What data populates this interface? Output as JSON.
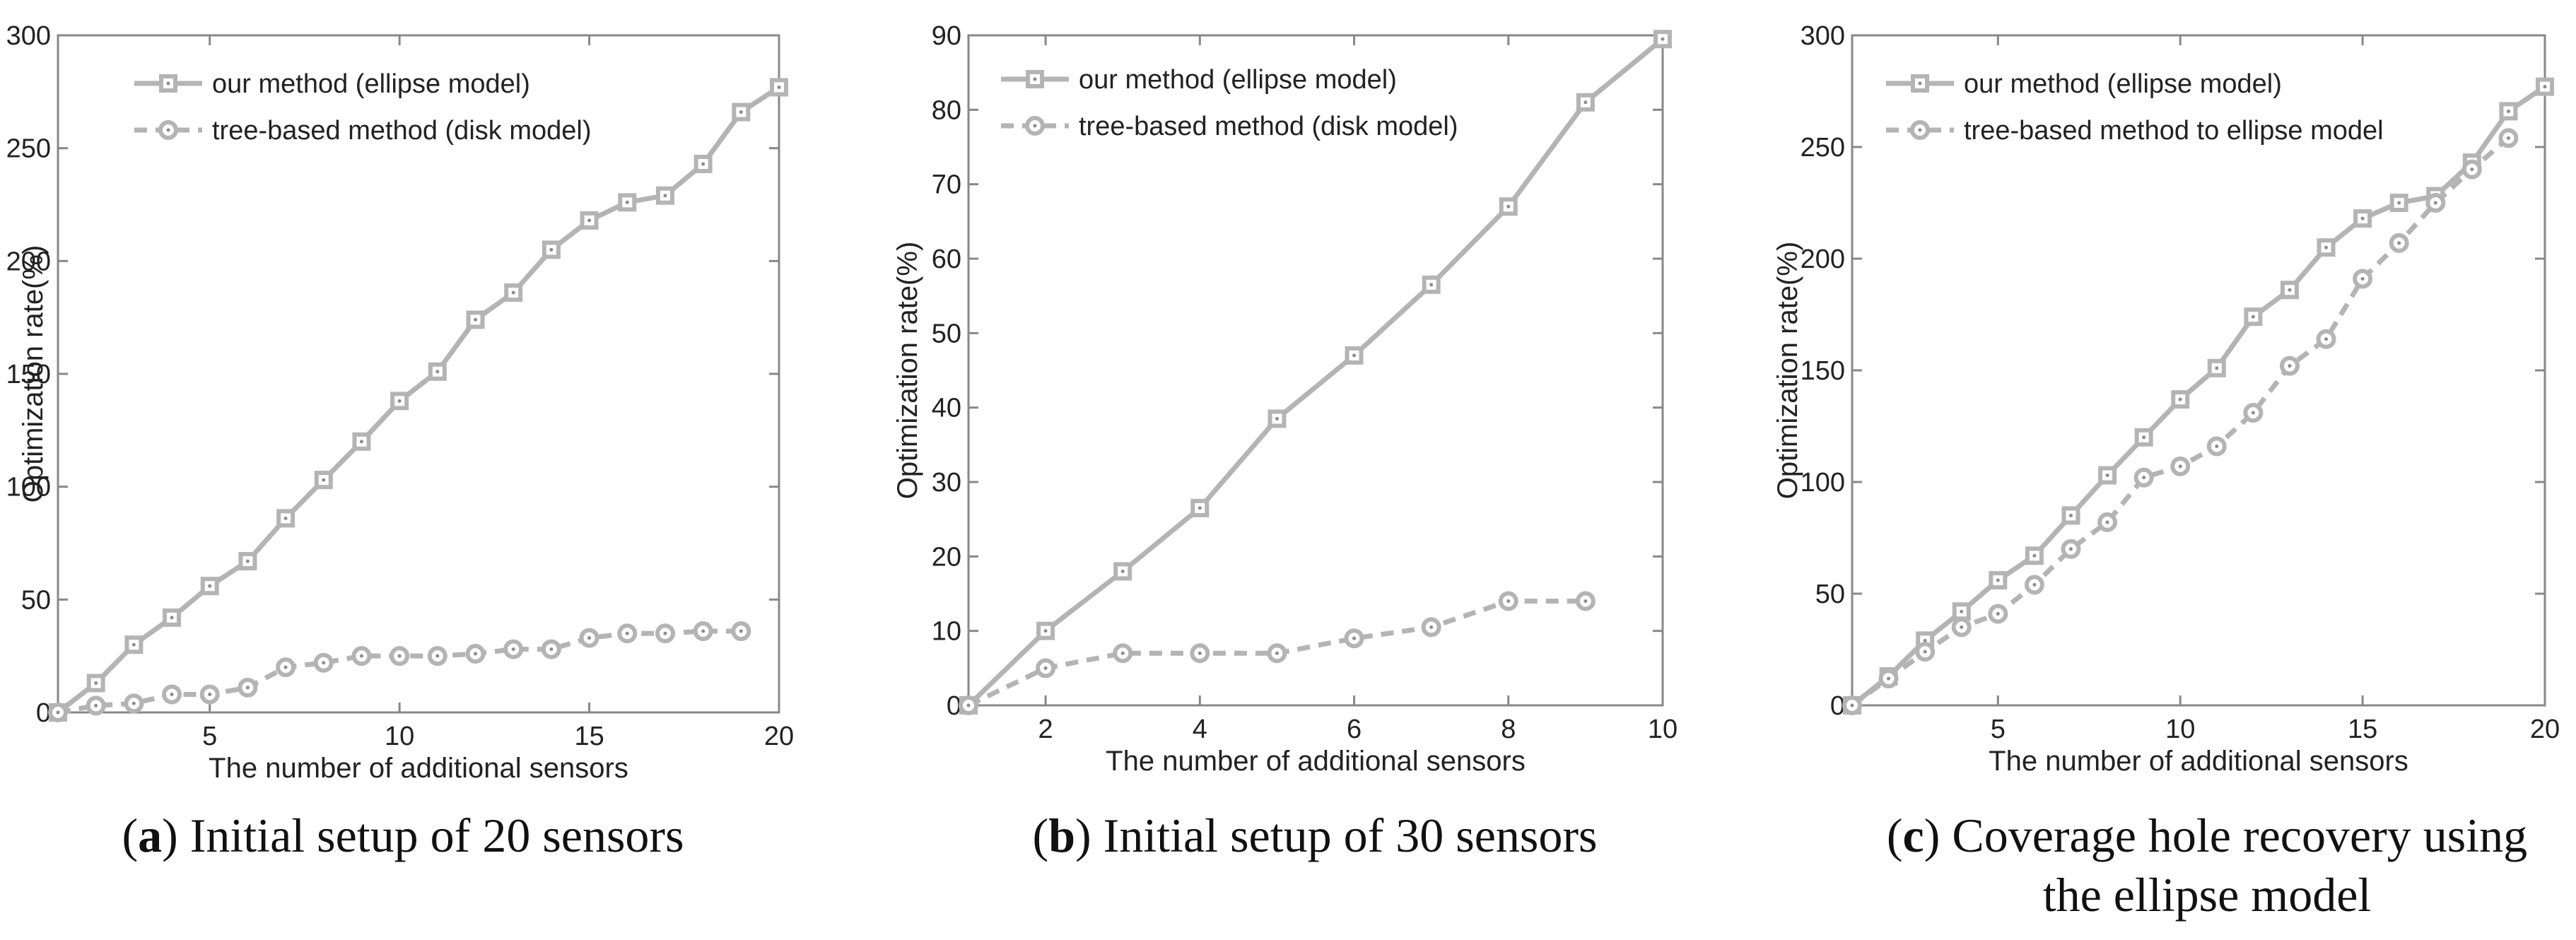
{
  "chart_data": [
    {
      "type": "line",
      "xlabel": "The number of additional sensors",
      "ylabel": "Optimization rate(%)",
      "xlim": [
        1,
        20
      ],
      "ylim": [
        0,
        300
      ],
      "xticks": [
        5,
        10,
        15,
        20
      ],
      "yticks": [
        0,
        50,
        100,
        150,
        200,
        250,
        300
      ],
      "grid": false,
      "legend_position": "top-left",
      "series": [
        {
          "name": "our method (ellipse model)",
          "style": "solid",
          "marker": "square",
          "x": [
            1,
            2,
            3,
            4,
            5,
            6,
            7,
            8,
            9,
            10,
            11,
            12,
            13,
            14,
            15,
            16,
            17,
            18,
            19,
            20
          ],
          "y": [
            0,
            13,
            30,
            42,
            56,
            67,
            86,
            103,
            120,
            138,
            151,
            174,
            186,
            205,
            218,
            226,
            229,
            243,
            266,
            277
          ]
        },
        {
          "name": "tree-based method (disk model)",
          "style": "dashed",
          "marker": "circle",
          "x": [
            1,
            2,
            3,
            4,
            5,
            6,
            7,
            8,
            9,
            10,
            11,
            12,
            13,
            14,
            15,
            16,
            17,
            18,
            19
          ],
          "y": [
            0,
            3,
            4,
            8,
            8,
            11,
            20,
            22,
            25,
            25,
            25,
            26,
            28,
            28,
            33,
            35,
            35,
            36,
            36
          ]
        }
      ],
      "caption_label": "a",
      "caption_text": "Initial setup of 20 sensors"
    },
    {
      "type": "line",
      "xlabel": "The number of additional sensors",
      "ylabel": "Optimization rate(%)",
      "xlim": [
        1,
        10
      ],
      "ylim": [
        0,
        90
      ],
      "xticks": [
        2,
        4,
        6,
        8,
        10
      ],
      "yticks": [
        0,
        10,
        20,
        30,
        40,
        50,
        60,
        70,
        80,
        90
      ],
      "grid": false,
      "legend_position": "top-left",
      "series": [
        {
          "name": "our method (ellipse model)",
          "style": "solid",
          "marker": "square",
          "x": [
            1,
            2,
            3,
            4,
            5,
            6,
            7,
            8,
            9,
            10
          ],
          "y": [
            0,
            10,
            18,
            26.5,
            38.5,
            47,
            56.5,
            67,
            81,
            89.5
          ]
        },
        {
          "name": "tree-based method (disk model)",
          "style": "dashed",
          "marker": "circle",
          "x": [
            1,
            2,
            3,
            4,
            5,
            6,
            7,
            8,
            9
          ],
          "y": [
            0,
            5,
            7,
            7,
            7,
            9,
            10.5,
            14,
            14
          ]
        }
      ],
      "caption_label": "b",
      "caption_text": "Initial setup of 30 sensors"
    },
    {
      "type": "line",
      "xlabel": "The number of additional sensors",
      "ylabel": "Optimization rate(%)",
      "xlim": [
        1,
        20
      ],
      "ylim": [
        0,
        300
      ],
      "xticks": [
        5,
        10,
        15,
        20
      ],
      "yticks": [
        0,
        50,
        100,
        150,
        200,
        250,
        300
      ],
      "grid": false,
      "legend_position": "top-left",
      "series": [
        {
          "name": "our method (ellipse model)",
          "style": "solid",
          "marker": "square",
          "x": [
            1,
            2,
            3,
            4,
            5,
            6,
            7,
            8,
            9,
            10,
            11,
            12,
            13,
            14,
            15,
            16,
            17,
            18,
            19,
            20
          ],
          "y": [
            0,
            13,
            29,
            42,
            56,
            67,
            85,
            103,
            120,
            137,
            151,
            174,
            186,
            205,
            218,
            225,
            228,
            243,
            266,
            277
          ]
        },
        {
          "name": "tree-based method to ellipse model",
          "style": "dashed",
          "marker": "circle",
          "x": [
            1,
            2,
            3,
            4,
            5,
            6,
            7,
            8,
            9,
            10,
            11,
            12,
            13,
            14,
            15,
            16,
            17,
            18,
            19
          ],
          "y": [
            0,
            12,
            24,
            35,
            41,
            54,
            70,
            82,
            102,
            107,
            116,
            131,
            152,
            164,
            191,
            207,
            225,
            240,
            254
          ]
        }
      ],
      "caption_label": "c",
      "caption_text": "Coverage hole recovery using",
      "caption_text2": "the ellipse model"
    }
  ],
  "colors": {
    "series_line": "#b4b4b4",
    "marker_inner": "#8c8c8c",
    "axis": "#888888",
    "text": "#222222"
  }
}
